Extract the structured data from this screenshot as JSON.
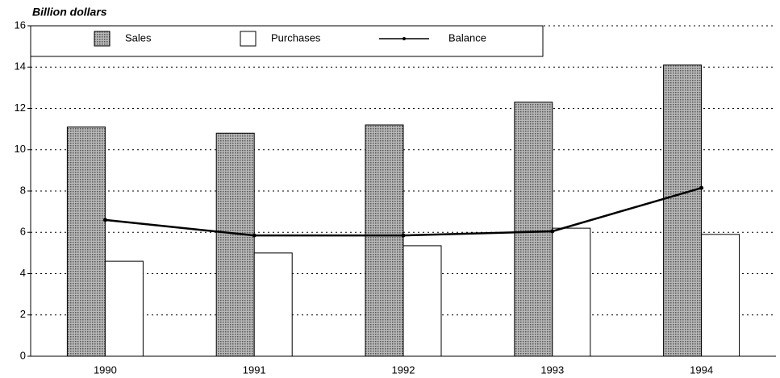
{
  "chart_data": {
    "type": "bar",
    "title": "Billion dollars",
    "categories": [
      "1990",
      "1991",
      "1992",
      "1993",
      "1994"
    ],
    "series": [
      {
        "name": "Sales",
        "type": "bar",
        "color": "#b8b8b8",
        "values": [
          11.1,
          10.8,
          11.2,
          12.3,
          14.1
        ]
      },
      {
        "name": "Purchases",
        "type": "bar",
        "color": "#ffffff",
        "values": [
          4.6,
          5.0,
          5.35,
          6.2,
          5.9
        ]
      },
      {
        "name": "Balance",
        "type": "line",
        "color": "#000000",
        "values": [
          6.6,
          5.85,
          5.85,
          6.05,
          8.15
        ]
      }
    ],
    "ylim": [
      0,
      16
    ],
    "yticks": [
      0,
      2,
      4,
      6,
      8,
      10,
      12,
      14,
      16
    ],
    "grid": true,
    "legend": "top"
  }
}
